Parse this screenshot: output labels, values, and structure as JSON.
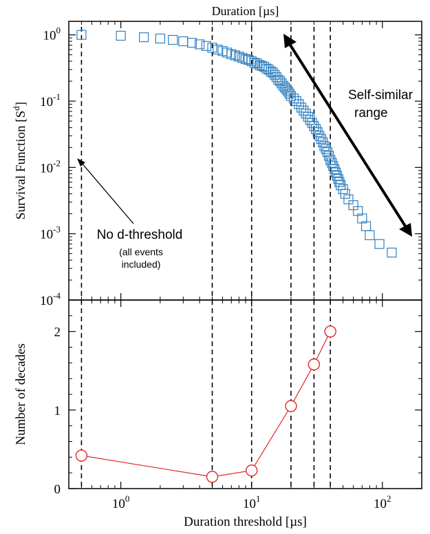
{
  "chart_data": [
    {
      "panel": "top",
      "type": "scatter",
      "title": "Duration [µs]",
      "xscale": "log",
      "yscale": "log",
      "xlim": [
        0.4,
        200
      ],
      "ylim": [
        0.0001,
        1.6
      ],
      "ylabel": "Survival Function [S",
      "ylabel_sup": "d",
      "ylabel_end": "]",
      "ytick_values": [
        1,
        0.1,
        0.01,
        0.001,
        0.0001
      ],
      "ytick_mantissa": "10",
      "ytick_exponents": [
        "0",
        "-1",
        "-2",
        "-3",
        "-4"
      ],
      "marker": "open-square",
      "color": "#2f7fc1",
      "points": [
        [
          0.5,
          1.0
        ],
        [
          1.0,
          0.97
        ],
        [
          1.5,
          0.92
        ],
        [
          2.0,
          0.88
        ],
        [
          2.5,
          0.84
        ],
        [
          3.0,
          0.8
        ],
        [
          3.5,
          0.76
        ],
        [
          4.0,
          0.72
        ],
        [
          4.5,
          0.68
        ],
        [
          5.0,
          0.64
        ],
        [
          5.5,
          0.6
        ],
        [
          6.0,
          0.57
        ],
        [
          6.5,
          0.54
        ],
        [
          7.0,
          0.51
        ],
        [
          7.5,
          0.49
        ],
        [
          8.0,
          0.47
        ],
        [
          8.5,
          0.45
        ],
        [
          9.0,
          0.43
        ],
        [
          9.5,
          0.42
        ],
        [
          10,
          0.4
        ],
        [
          10.5,
          0.38
        ],
        [
          11,
          0.37
        ],
        [
          11.5,
          0.35
        ],
        [
          12,
          0.34
        ],
        [
          12.5,
          0.33
        ],
        [
          13,
          0.31
        ],
        [
          13.5,
          0.3
        ],
        [
          14,
          0.28
        ],
        [
          14.5,
          0.27
        ],
        [
          15,
          0.25
        ],
        [
          15.5,
          0.23
        ],
        [
          16,
          0.21
        ],
        [
          16.5,
          0.2
        ],
        [
          17,
          0.185
        ],
        [
          17.5,
          0.17
        ],
        [
          18,
          0.16
        ],
        [
          18.5,
          0.15
        ],
        [
          19,
          0.14
        ],
        [
          19.5,
          0.13
        ],
        [
          20,
          0.12
        ],
        [
          21,
          0.11
        ],
        [
          22,
          0.1
        ],
        [
          23,
          0.09
        ],
        [
          24,
          0.08
        ],
        [
          25,
          0.072
        ],
        [
          26,
          0.065
        ],
        [
          27,
          0.058
        ],
        [
          28,
          0.052
        ],
        [
          29,
          0.047
        ],
        [
          30,
          0.042
        ],
        [
          31,
          0.038
        ],
        [
          32,
          0.034
        ],
        [
          33,
          0.03
        ],
        [
          34,
          0.027
        ],
        [
          35,
          0.024
        ],
        [
          36,
          0.021
        ],
        [
          37,
          0.019
        ],
        [
          38,
          0.017
        ],
        [
          39,
          0.015
        ],
        [
          40,
          0.013
        ],
        [
          41,
          0.0118
        ],
        [
          42,
          0.0105
        ],
        [
          43,
          0.0094
        ],
        [
          44,
          0.0084
        ],
        [
          45,
          0.0075
        ],
        [
          46,
          0.0067
        ],
        [
          47,
          0.006
        ],
        [
          48,
          0.0054
        ],
        [
          50,
          0.0047
        ],
        [
          52,
          0.004
        ],
        [
          55,
          0.0033
        ],
        [
          60,
          0.0027
        ],
        [
          65,
          0.0022
        ],
        [
          70,
          0.0017
        ],
        [
          75,
          0.0013
        ],
        [
          80,
          0.00095
        ],
        [
          95,
          0.0007
        ],
        [
          118,
          0.00052
        ]
      ]
    },
    {
      "panel": "bottom",
      "type": "line",
      "xlabel": "Duration threshold [µs]",
      "ylabel": "Number of decades",
      "xscale": "log",
      "xlim": [
        0.4,
        200
      ],
      "ylim": [
        0,
        2.4
      ],
      "xtick_values": [
        1,
        10,
        100
      ],
      "xtick_mantissa": "10",
      "xtick_exponents": [
        "0",
        "1",
        "2"
      ],
      "ytick_values": [
        0,
        1,
        2
      ],
      "ytick_labels": [
        "0",
        "1",
        "2"
      ],
      "marker": "open-circle",
      "color": "#e0272a",
      "points": [
        [
          0.5,
          0.42
        ],
        [
          5,
          0.15
        ],
        [
          10,
          0.23
        ],
        [
          20,
          1.05
        ],
        [
          30,
          1.58
        ],
        [
          40,
          2.0
        ]
      ]
    }
  ],
  "thresholds": [
    0.5,
    5,
    10,
    20,
    30,
    40
  ],
  "annotations": {
    "no_threshold_title": "No d-threshold",
    "no_threshold_line1": "(all events",
    "no_threshold_line2": "included)",
    "self_similar_line1": "Self-similar",
    "self_similar_line2": "range"
  }
}
